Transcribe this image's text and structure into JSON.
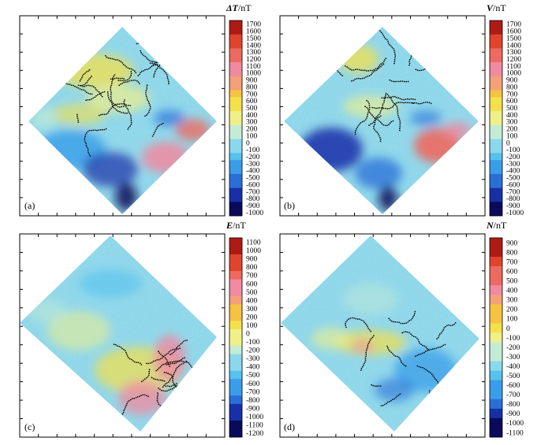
{
  "chart_data": [
    {
      "type": "heatmap",
      "panel_label": "(a)",
      "colorbar_title_symbol": "ΔT",
      "colorbar_title_unit": "/nT",
      "colorbar_ticks": [
        1700,
        1600,
        1500,
        1400,
        1300,
        1200,
        1100,
        1000,
        900,
        800,
        700,
        600,
        500,
        400,
        300,
        200,
        100,
        0,
        -100,
        -200,
        -300,
        -400,
        -500,
        -600,
        -700,
        -800,
        -900,
        -1000
      ],
      "colorbar_range": [
        -1000,
        1700
      ],
      "grid": false
    },
    {
      "type": "heatmap",
      "panel_label": "(b)",
      "colorbar_title_symbol": "V",
      "colorbar_title_unit": "/nT",
      "colorbar_ticks": [
        1700,
        1600,
        1500,
        1400,
        1300,
        1200,
        1100,
        1000,
        900,
        800,
        700,
        600,
        500,
        400,
        300,
        200,
        100,
        0,
        -100,
        -200,
        -300,
        -400,
        -500,
        -600,
        -700,
        -800,
        -900,
        -1000
      ],
      "colorbar_range": [
        -1000,
        1700
      ],
      "grid": false
    },
    {
      "type": "heatmap",
      "panel_label": "(c)",
      "colorbar_title_symbol": "E",
      "colorbar_title_unit": "/nT",
      "colorbar_ticks": [
        1100,
        1000,
        900,
        800,
        700,
        600,
        500,
        400,
        300,
        200,
        100,
        0,
        -100,
        -200,
        -300,
        -400,
        -500,
        -600,
        -700,
        -800,
        -900,
        -1000,
        -1100,
        -1200
      ],
      "colorbar_range": [
        -1200,
        1100
      ],
      "grid": false
    },
    {
      "type": "heatmap",
      "panel_label": "(d)",
      "colorbar_title_symbol": "N",
      "colorbar_title_unit": "/nT",
      "colorbar_ticks": [
        900,
        800,
        700,
        600,
        500,
        400,
        300,
        200,
        100,
        0,
        -100,
        -200,
        -300,
        -400,
        -500,
        -600,
        -700,
        -800,
        -900,
        -1000,
        -1100
      ],
      "colorbar_range": [
        -1100,
        900
      ],
      "grid": false
    }
  ],
  "colors": {
    "colormap": [
      "#0a0a5a",
      "#1730a8",
      "#2a6fd8",
      "#3a9de8",
      "#56c2ee",
      "#8ad8ee",
      "#c4ecd4",
      "#f0f08a",
      "#f4e04a",
      "#f5c242",
      "#f4a07a",
      "#f08aa0",
      "#ee6a60",
      "#e0442c",
      "#b01a14"
    ],
    "background_field": "#8fd6ea",
    "dots": "#111111"
  }
}
